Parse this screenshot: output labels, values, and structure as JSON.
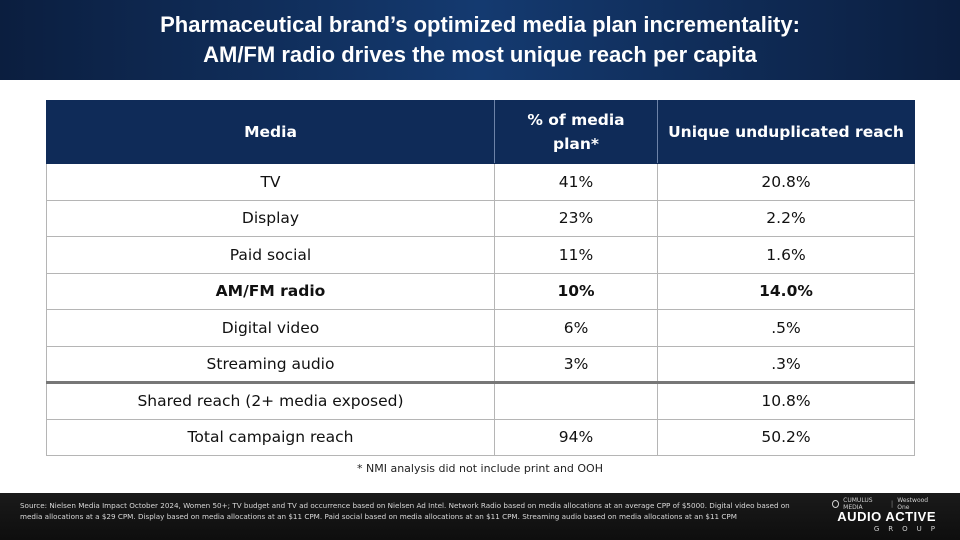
{
  "title": {
    "line1": "Pharmaceutical brand’s optimized media plan incrementality:",
    "line2": "AM/FM radio drives the most unique reach per capita"
  },
  "table": {
    "headers": [
      "Media",
      "% of media plan*",
      "Unique unduplicated reach"
    ],
    "rows": [
      [
        "TV",
        "41%",
        "20.8%"
      ],
      [
        "Display",
        "23%",
        "2.2%"
      ],
      [
        "Paid social",
        "11%",
        "1.6%"
      ],
      [
        "AM/FM radio",
        "10%",
        "14.0%"
      ],
      [
        "Digital video",
        "6%",
        ".5%"
      ],
      [
        "Streaming audio",
        "3%",
        ".3%"
      ],
      [
        "Shared reach (2+ media exposed)",
        "",
        "10.8%"
      ],
      [
        "Total campaign reach",
        "94%",
        "50.2%"
      ]
    ],
    "highlighted_row": "AM/FM radio"
  },
  "footnote": "* NMI analysis did not include print and OOH",
  "source": "Source: Nielsen Media Impact October 2024, Women 50+; TV budget and TV ad occurrence based on Nielsen Ad Intel. Network Radio based on media allocations at an average CPP of $5000. Digital video based on media allocations at a $29 CPM. Display based on media allocations at an $11 CPM. Paid social based on media allocations at an $11 CPM. Streaming audio based on media allocations at an $11 CPM",
  "logo": {
    "partner1": "CUMULUS MEDIA",
    "partner2": "Westwood One",
    "name": "AUDIO ACTIVE",
    "sub": "GROUP"
  },
  "colors": {
    "header_bg": "#0f2b58",
    "title_bg": "#143a70",
    "footer_bg": "#111111"
  }
}
